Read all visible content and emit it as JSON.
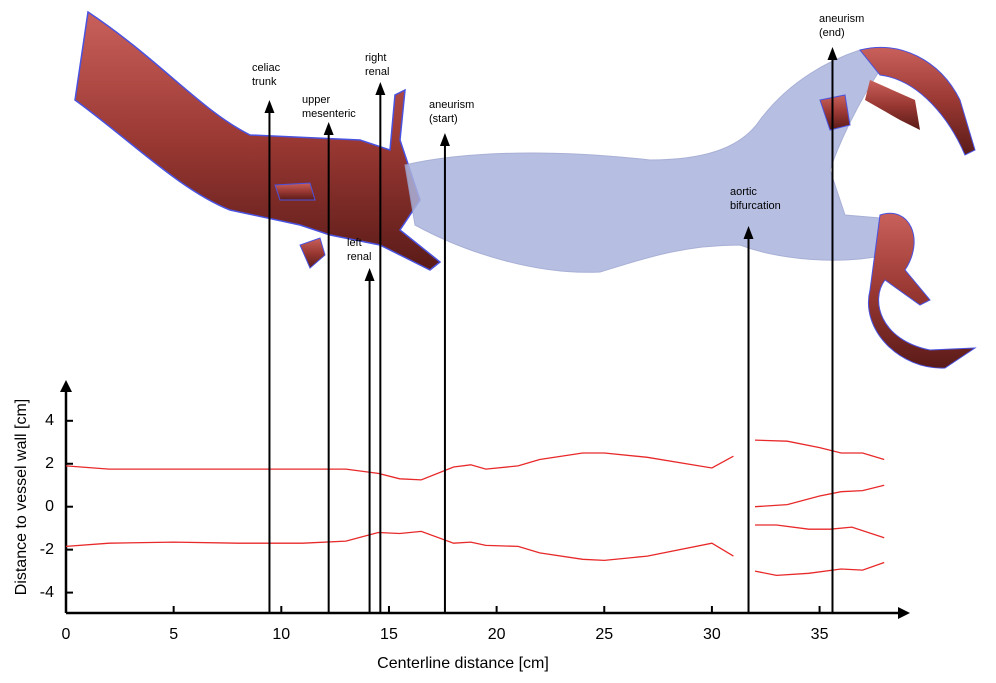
{
  "chart_data": {
    "type": "line",
    "x_label": "Centerline distance [cm]",
    "y_label": "Distance to vessel wall [cm]",
    "xlim": [
      0,
      39.2
    ],
    "ylim": [
      -4.95,
      5.9
    ],
    "xticks": [
      0,
      5,
      10,
      15,
      20,
      25,
      30,
      35
    ],
    "yticks": [
      -4,
      -2,
      0,
      2,
      4
    ],
    "series": [
      {
        "color": "#e8292a",
        "x": [
          0,
          2,
          5,
          8,
          11,
          13,
          14.5,
          15.5,
          16.5,
          18,
          18.8,
          19.5,
          21,
          22,
          24,
          25,
          27,
          30,
          31
        ],
        "values": [
          1.9,
          1.75,
          1.75,
          1.75,
          1.75,
          1.75,
          1.55,
          1.3,
          1.25,
          1.85,
          1.95,
          1.75,
          1.9,
          2.2,
          2.5,
          2.5,
          2.3,
          1.8,
          2.35
        ]
      },
      {
        "color": "#e8292a",
        "x": [
          0,
          2,
          5,
          8,
          11,
          13,
          14.5,
          15.5,
          16.5,
          18,
          18.8,
          19.5,
          21,
          22,
          24,
          25,
          27,
          30,
          31
        ],
        "values": [
          -1.85,
          -1.7,
          -1.65,
          -1.7,
          -1.7,
          -1.6,
          -1.2,
          -1.25,
          -1.15,
          -1.7,
          -1.65,
          -1.8,
          -1.85,
          -2.15,
          -2.45,
          -2.5,
          -2.3,
          -1.7,
          -2.3
        ]
      },
      {
        "color": "#e8292a",
        "x": [
          32,
          33.5,
          35,
          36,
          37,
          38
        ],
        "values": [
          3.1,
          3.05,
          2.75,
          2.5,
          2.5,
          2.2
        ]
      },
      {
        "color": "#e8292a",
        "x": [
          32,
          33.5,
          35,
          36,
          37,
          38
        ],
        "values": [
          0,
          0.1,
          0.5,
          0.7,
          0.75,
          1.0
        ]
      },
      {
        "color": "#e8292a",
        "x": [
          32,
          33,
          34.5,
          35.5,
          36.5,
          38
        ],
        "values": [
          -0.85,
          -0.85,
          -1.05,
          -1.05,
          -0.95,
          -1.45
        ]
      },
      {
        "color": "#e8292a",
        "x": [
          32,
          33,
          34.5,
          36,
          37,
          38
        ],
        "values": [
          -3.0,
          -3.2,
          -3.1,
          -2.9,
          -2.95,
          -2.6
        ]
      }
    ],
    "annotations": [
      {
        "text": [
          "celiac",
          "trunk"
        ],
        "x": 9.45
      },
      {
        "text": [
          "upper",
          "mesenteric"
        ],
        "x": 12.2
      },
      {
        "text": [
          "left",
          "renal"
        ],
        "x": 14.1
      },
      {
        "text": [
          "right",
          "renal"
        ],
        "x": 14.6
      },
      {
        "text": [
          "aneurism",
          "(start)"
        ],
        "x": 17.6
      },
      {
        "text": [
          "aortic",
          "bifurcation"
        ],
        "x": 31.7
      },
      {
        "text": [
          "aneurism",
          "(end)"
        ],
        "x": 35.6
      }
    ]
  }
}
